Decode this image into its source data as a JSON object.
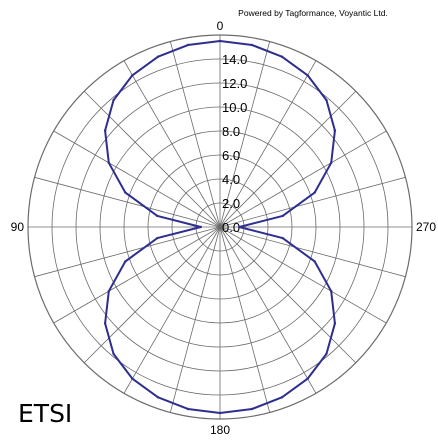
{
  "credit": "Powered by Tagformance, Voyantic Ltd.",
  "standard_label": "ETSI",
  "colors": {
    "series": "#2e2e8f",
    "grid": "#6b6b6b",
    "background": "#ffffff"
  },
  "chart_data": {
    "type": "polar",
    "title": "",
    "rmax": 16,
    "rings": [
      2,
      4,
      6,
      8,
      10,
      12,
      14,
      16
    ],
    "radial_tick_labels": [
      "0.0",
      "2.0",
      "4.0",
      "6.0",
      "8.0",
      "10.0",
      "12.0",
      "14.0"
    ],
    "radial_tick_values": [
      0,
      2,
      4,
      6,
      8,
      10,
      12,
      14
    ],
    "spoke_step_deg": 15,
    "angle_labels": [
      {
        "text": "0",
        "angle": 0
      },
      {
        "text": "90",
        "angle": 90
      },
      {
        "text": "180",
        "angle": 180
      },
      {
        "text": "270",
        "angle": 270
      }
    ],
    "angle_direction": "counterclockwise, 0 at top",
    "series": [
      {
        "angles": [
          0,
          10,
          20,
          30,
          40,
          50,
          60,
          70,
          80,
          90,
          100,
          110,
          120,
          130,
          140,
          150,
          160,
          170,
          180,
          190,
          200,
          210,
          220,
          230,
          240,
          250,
          260,
          270,
          280,
          290,
          300,
          310,
          320,
          330,
          340,
          350
        ],
        "values": [
          15.5,
          15.4,
          15.1,
          14.6,
          13.8,
          12.5,
          10.7,
          8.4,
          5.3,
          1.6,
          5.3,
          8.4,
          10.7,
          12.5,
          13.8,
          14.6,
          15.1,
          15.4,
          15.5,
          15.4,
          15.1,
          14.6,
          13.8,
          12.5,
          10.7,
          8.4,
          5.3,
          1.6,
          5.3,
          8.4,
          10.7,
          12.5,
          13.8,
          14.6,
          15.1,
          15.4
        ]
      }
    ]
  }
}
